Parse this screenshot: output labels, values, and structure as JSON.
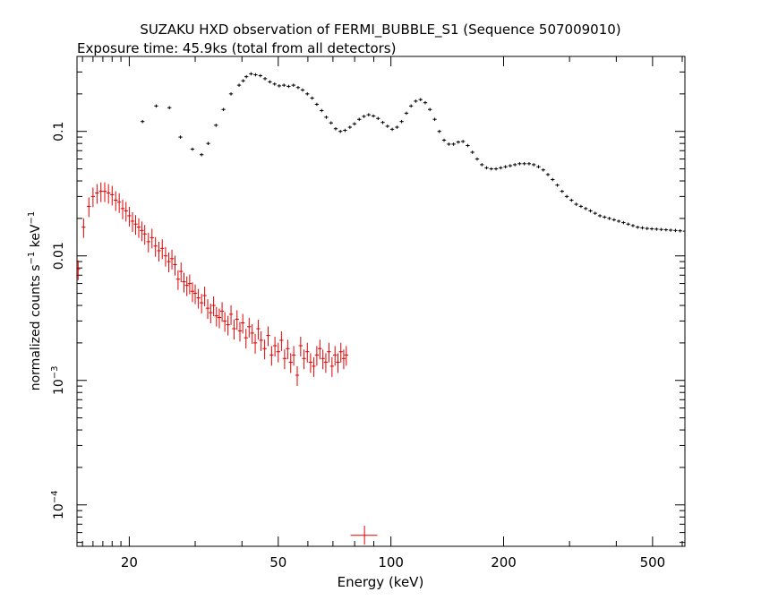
{
  "chart_data": {
    "type": "scatter",
    "title": "SUZAKU HXD observation of FERMI_BUBBLE_S1 (Sequence 507009010)",
    "subtitle": "Exposure time: 45.9ks (total from all detectors)",
    "xlabel": "Energy (keV)",
    "ylabel_main": "normalized counts s",
    "ylabel_exp1": "−1",
    "ylabel_mid": " keV",
    "ylabel_exp2": "−1",
    "x_scale": "log",
    "y_scale": "log",
    "xlim": [
      14.5,
      610
    ],
    "ylim": [
      4.65e-05,
      0.4
    ],
    "x_ticks": [
      {
        "value": 20,
        "label": "20"
      },
      {
        "value": 50,
        "label": "50"
      },
      {
        "value": 100,
        "label": "100"
      },
      {
        "value": 200,
        "label": "200"
      },
      {
        "value": 500,
        "label": "500"
      }
    ],
    "x_minor": [
      15,
      16,
      17,
      18,
      19,
      30,
      40,
      60,
      70,
      80,
      90,
      300,
      400,
      600
    ],
    "y_ticks": [
      {
        "value": 0.1,
        "base": "0.1",
        "exp": ""
      },
      {
        "value": 0.01,
        "base": "0.01",
        "exp": ""
      },
      {
        "value": 0.001,
        "base": "10",
        "exp": "−3"
      },
      {
        "value": 0.0001,
        "base": "10",
        "exp": "−4"
      }
    ],
    "y_minor_decades": [
      1e-05,
      0.0001,
      0.001,
      0.01,
      0.1
    ],
    "series": [
      {
        "color": "#e00000",
        "x": [
          14.6,
          15.1,
          15.6,
          16.0,
          16.4,
          16.8,
          17.2,
          17.6,
          18.0,
          18.4,
          18.8,
          19.2,
          19.6,
          20.0,
          20.4,
          20.8,
          21.2,
          21.6,
          22.0,
          22.5,
          23.0,
          23.5,
          24.0,
          24.5,
          25.0,
          25.5,
          26.0,
          26.5,
          27.0,
          27.5,
          28.0,
          28.5,
          29.0,
          29.5,
          30.0,
          30.6,
          31.2,
          31.8,
          32.4,
          33.0,
          33.6,
          34.2,
          34.8,
          35.4,
          36.0,
          36.7,
          37.4,
          38.1,
          38.8,
          39.5,
          40.2,
          41.0,
          41.8,
          42.6,
          43.4,
          44.2,
          45.0,
          46.0,
          47.0,
          48.0,
          49.0,
          50.0,
          51.0,
          52.0,
          53.0,
          54.0,
          55.0,
          56.2,
          57.4,
          58.6,
          59.8,
          61.0,
          62.2,
          63.4,
          64.6,
          65.8,
          67.0,
          68.3,
          69.6,
          70.9,
          72.2,
          73.5,
          74.8,
          76.0
        ],
        "y": [
          0.0078,
          0.017,
          0.025,
          0.03,
          0.032,
          0.033,
          0.033,
          0.032,
          0.031,
          0.028,
          0.027,
          0.024,
          0.023,
          0.021,
          0.019,
          0.018,
          0.017,
          0.016,
          0.015,
          0.013,
          0.014,
          0.012,
          0.011,
          0.0115,
          0.01,
          0.009,
          0.0095,
          0.0085,
          0.0065,
          0.0075,
          0.0062,
          0.0058,
          0.006,
          0.0052,
          0.005,
          0.0046,
          0.0042,
          0.0048,
          0.0038,
          0.0035,
          0.004,
          0.0033,
          0.0032,
          0.0036,
          0.003,
          0.0028,
          0.0034,
          0.0026,
          0.0031,
          0.0025,
          0.0029,
          0.0022,
          0.0027,
          0.0024,
          0.002,
          0.0026,
          0.0021,
          0.0018,
          0.0023,
          0.0016,
          0.0019,
          0.0017,
          0.0021,
          0.0015,
          0.0018,
          0.0014,
          0.0016,
          0.0011,
          0.0019,
          0.0015,
          0.0017,
          0.0014,
          0.0013,
          0.0016,
          0.0018,
          0.0015,
          0.0014,
          0.0017,
          0.0013,
          0.0016,
          0.0014,
          0.0017,
          0.0015,
          0.0016
        ],
        "yerr_frac": 0.18,
        "xerr_frac": 0.012,
        "extra_points": [
          {
            "x": 85,
            "y": 5.7e-05,
            "xlo": 78,
            "xhi": 92,
            "ylo": 4.8e-05,
            "yhi": 6.8e-05
          }
        ]
      },
      {
        "color": "#000000",
        "x": [
          21.7,
          23.6,
          25.6,
          27.4,
          29.5,
          31.2,
          32.5,
          34.1,
          35.7,
          37.4,
          39.3,
          40.3,
          41.1,
          42.3,
          43.5,
          44.8,
          46.1,
          47.5,
          48.9,
          50.3,
          51.8,
          53.3,
          54.9,
          56.5,
          58.1,
          59.8,
          61.6,
          63.4,
          65.3,
          67.2,
          69.2,
          71.2,
          73.3,
          75.4,
          77.7,
          79.9,
          82.3,
          84.7,
          87.2,
          89.8,
          92.4,
          95.1,
          97.9,
          100.8,
          103.8,
          106.8,
          110.0,
          113.2,
          116.5,
          120.0,
          123.5,
          127.1,
          130.9,
          134.7,
          138.7,
          142.8,
          147.0,
          151.3,
          155.8,
          160.4,
          165.1,
          170.0,
          175.0,
          180.1,
          185.4,
          190.9,
          196.5,
          202.3,
          208.3,
          214.4,
          220.7,
          227.2,
          233.9,
          240.8,
          247.9,
          255.2,
          262.7,
          270.4,
          278.4,
          286.6,
          295.0,
          303.7,
          312.7,
          321.9,
          331.4,
          341.2,
          351.2,
          361.6,
          372.2,
          383.2,
          394.5,
          406.1,
          418.1,
          430.4,
          443.1,
          456.2,
          469.6,
          483.4,
          497.7,
          512.4,
          527.5,
          543.0,
          559.0,
          575.5,
          592.5,
          610.0
        ],
        "y": [
          0.12,
          0.16,
          0.155,
          0.09,
          0.072,
          0.065,
          0.08,
          0.112,
          0.15,
          0.2,
          0.235,
          0.255,
          0.275,
          0.29,
          0.285,
          0.28,
          0.265,
          0.25,
          0.24,
          0.232,
          0.235,
          0.23,
          0.235,
          0.225,
          0.215,
          0.2,
          0.185,
          0.165,
          0.147,
          0.13,
          0.117,
          0.105,
          0.1,
          0.102,
          0.108,
          0.115,
          0.125,
          0.132,
          0.136,
          0.133,
          0.127,
          0.118,
          0.11,
          0.104,
          0.108,
          0.12,
          0.14,
          0.16,
          0.175,
          0.18,
          0.17,
          0.15,
          0.125,
          0.1,
          0.085,
          0.079,
          0.079,
          0.082,
          0.083,
          0.077,
          0.068,
          0.06,
          0.054,
          0.051,
          0.05,
          0.05,
          0.051,
          0.052,
          0.053,
          0.054,
          0.055,
          0.055,
          0.055,
          0.054,
          0.052,
          0.049,
          0.045,
          0.041,
          0.037,
          0.033,
          0.03,
          0.028,
          0.026,
          0.025,
          0.024,
          0.023,
          0.022,
          0.021,
          0.0205,
          0.02,
          0.0195,
          0.019,
          0.0185,
          0.018,
          0.0175,
          0.017,
          0.0168,
          0.0166,
          0.0165,
          0.0164,
          0.0163,
          0.0162,
          0.0161,
          0.016,
          0.0159,
          0.0158
        ],
        "yerr_frac": 0.03,
        "xerr_frac": 0.012
      }
    ]
  }
}
